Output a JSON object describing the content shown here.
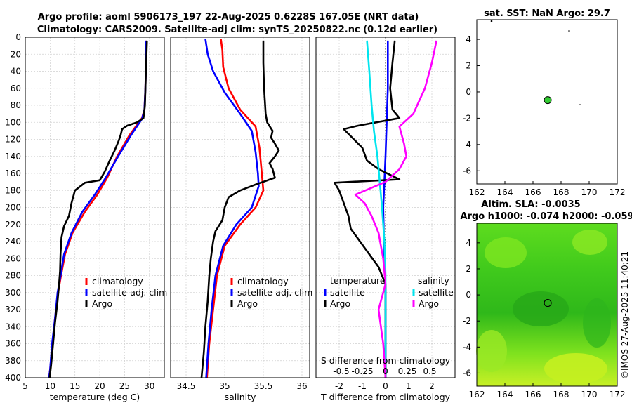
{
  "header": {
    "title_line1": "Argo profile: aoml 5906173_197 22-Aug-2025 0.6228S 167.05E (NRT data)",
    "title_line2": "Climatology: CARS2009. Satellite-adj clim: synTS_20250822.nc (0.12d earlier)"
  },
  "colors": {
    "climatology": "#ff0000",
    "satellite": "#0000ff",
    "argo": "#000000",
    "sal_satellite": "#00e5ee",
    "sal_argo": "#ff00ff",
    "map_dot": "#33cc33"
  },
  "chart_data": [
    {
      "type": "line",
      "id": "temperature",
      "xlabel": "temperature (deg C)",
      "ylim": [
        400,
        0
      ],
      "xlim": [
        5,
        33
      ],
      "xticks": [
        "5",
        "10",
        "15",
        "20",
        "25",
        "30"
      ],
      "yticks": [
        "0",
        "20",
        "40",
        "60",
        "80",
        "100",
        "120",
        "140",
        "160",
        "180",
        "200",
        "220",
        "240",
        "260",
        "280",
        "300",
        "320",
        "340",
        "360",
        "380",
        "400"
      ],
      "legend": [
        "climatology",
        "satellite-adj. clim",
        "Argo"
      ],
      "series": [
        {
          "name": "climatology",
          "points": [
            [
              29.3,
              4
            ],
            [
              29.3,
              30
            ],
            [
              29.2,
              60
            ],
            [
              29.0,
              85
            ],
            [
              28.5,
              95
            ],
            [
              26.0,
              115
            ],
            [
              23.5,
              140
            ],
            [
              21.5,
              165
            ],
            [
              19.5,
              185
            ],
            [
              17.0,
              205
            ],
            [
              14.5,
              230
            ],
            [
              13.0,
              255
            ],
            [
              12.2,
              280
            ],
            [
              11.6,
              300
            ],
            [
              11.0,
              330
            ],
            [
              10.5,
              360
            ],
            [
              10.0,
              390
            ],
            [
              9.8,
              400
            ]
          ]
        },
        {
          "name": "satellite-adj. clim",
          "points": [
            [
              29.3,
              4
            ],
            [
              29.3,
              30
            ],
            [
              29.2,
              60
            ],
            [
              29.0,
              85
            ],
            [
              28.5,
              96
            ],
            [
              26.3,
              115
            ],
            [
              23.7,
              140
            ],
            [
              21.2,
              165
            ],
            [
              19.0,
              185
            ],
            [
              16.5,
              205
            ],
            [
              14.3,
              230
            ],
            [
              12.8,
              255
            ],
            [
              12.1,
              280
            ],
            [
              11.5,
              300
            ],
            [
              11.0,
              330
            ],
            [
              10.4,
              360
            ],
            [
              10.0,
              390
            ],
            [
              9.8,
              400
            ]
          ]
        },
        {
          "name": "Argo",
          "points": [
            [
              29.5,
              4
            ],
            [
              29.3,
              40
            ],
            [
              29.1,
              80
            ],
            [
              28.8,
              95
            ],
            [
              27.5,
              100
            ],
            [
              25.5,
              104
            ],
            [
              24.5,
              108
            ],
            [
              24.2,
              115
            ],
            [
              23.8,
              122
            ],
            [
              23.0,
              133
            ],
            [
              22.0,
              145
            ],
            [
              21.0,
              158
            ],
            [
              20.0,
              168
            ],
            [
              17.0,
              171
            ],
            [
              15.0,
              180
            ],
            [
              14.3,
              195
            ],
            [
              13.8,
              210
            ],
            [
              12.8,
              222
            ],
            [
              12.3,
              235
            ],
            [
              12.1,
              255
            ],
            [
              12.0,
              275
            ],
            [
              11.8,
              290
            ],
            [
              11.5,
              310
            ],
            [
              11.0,
              335
            ],
            [
              10.6,
              360
            ],
            [
              10.2,
              385
            ],
            [
              9.9,
              400
            ]
          ]
        }
      ]
    },
    {
      "type": "line",
      "id": "salinity",
      "xlabel": "salinity",
      "ylim": [
        400,
        0
      ],
      "xlim": [
        34.3,
        36.1
      ],
      "xticks": [
        "34.5",
        "35",
        "35.5",
        "36"
      ],
      "legend": [
        "climatology",
        "satellite-adj. clim",
        "Argo"
      ],
      "series": [
        {
          "name": "climatology",
          "points": [
            [
              34.95,
              2
            ],
            [
              34.97,
              15
            ],
            [
              34.98,
              35
            ],
            [
              35.05,
              60
            ],
            [
              35.2,
              85
            ],
            [
              35.4,
              105
            ],
            [
              35.45,
              130
            ],
            [
              35.48,
              160
            ],
            [
              35.5,
              180
            ],
            [
              35.4,
              200
            ],
            [
              35.2,
              220
            ],
            [
              35.0,
              245
            ],
            [
              34.9,
              280
            ],
            [
              34.85,
              320
            ],
            [
              34.8,
              360
            ],
            [
              34.77,
              400
            ]
          ]
        },
        {
          "name": "satellite-adj. clim",
          "points": [
            [
              34.75,
              2
            ],
            [
              34.78,
              20
            ],
            [
              34.85,
              40
            ],
            [
              35.0,
              65
            ],
            [
              35.2,
              90
            ],
            [
              35.35,
              110
            ],
            [
              35.4,
              135
            ],
            [
              35.43,
              160
            ],
            [
              35.44,
              175
            ],
            [
              35.35,
              200
            ],
            [
              35.15,
              220
            ],
            [
              34.98,
              245
            ],
            [
              34.88,
              280
            ],
            [
              34.83,
              320
            ],
            [
              34.79,
              360
            ],
            [
              34.76,
              400
            ]
          ]
        },
        {
          "name": "Argo",
          "points": [
            [
              35.5,
              4
            ],
            [
              35.5,
              30
            ],
            [
              35.51,
              60
            ],
            [
              35.53,
              90
            ],
            [
              35.55,
              100
            ],
            [
              35.62,
              110
            ],
            [
              35.6,
              118
            ],
            [
              35.65,
              125
            ],
            [
              35.7,
              133
            ],
            [
              35.65,
              140
            ],
            [
              35.58,
              148
            ],
            [
              35.62,
              155
            ],
            [
              35.65,
              165
            ],
            [
              35.4,
              173
            ],
            [
              35.2,
              180
            ],
            [
              35.05,
              188
            ],
            [
              35.0,
              200
            ],
            [
              34.97,
              215
            ],
            [
              34.88,
              228
            ],
            [
              34.85,
              240
            ],
            [
              34.82,
              260
            ],
            [
              34.8,
              280
            ],
            [
              34.78,
              310
            ],
            [
              34.75,
              340
            ],
            [
              34.73,
              370
            ],
            [
              34.7,
              400
            ]
          ]
        }
      ]
    },
    {
      "type": "line",
      "id": "difference",
      "xlabel": "T difference from climatology",
      "xlabel_top": "S difference from climatology",
      "ylim": [
        400,
        0
      ],
      "xlim": [
        -3,
        3
      ],
      "xticks": [
        "-2",
        "-1",
        "0",
        "1",
        "2"
      ],
      "xticks_top": [
        "-0.5",
        "-0.25",
        "0",
        "0.25",
        "0.5"
      ],
      "legend_left_title": "temperature",
      "legend_right_title": "salinity",
      "legend_left": [
        "satellite",
        "Argo"
      ],
      "legend_right": [
        "satellite",
        "Argo"
      ],
      "series": [
        {
          "name": "temperature satellite",
          "points": [
            [
              0.1,
              4
            ],
            [
              0.1,
              60
            ],
            [
              0.05,
              100
            ],
            [
              0.0,
              140
            ],
            [
              -0.05,
              170
            ],
            [
              -0.1,
              200
            ],
            [
              -0.05,
              260
            ],
            [
              0.0,
              300
            ],
            [
              0.0,
              400
            ]
          ]
        },
        {
          "name": "temperature Argo",
          "points": [
            [
              0.4,
              4
            ],
            [
              0.3,
              30
            ],
            [
              0.2,
              60
            ],
            [
              0.3,
              85
            ],
            [
              0.6,
              95
            ],
            [
              -1.2,
              104
            ],
            [
              -1.8,
              108
            ],
            [
              -1.0,
              130
            ],
            [
              -0.8,
              145
            ],
            [
              -0.3,
              155
            ],
            [
              0.6,
              167
            ],
            [
              -2.2,
              171
            ],
            [
              -2.0,
              180
            ],
            [
              -1.8,
              195
            ],
            [
              -1.6,
              210
            ],
            [
              -1.5,
              225
            ],
            [
              -1.1,
              240
            ],
            [
              -0.7,
              255
            ],
            [
              -0.3,
              270
            ],
            [
              0.0,
              290
            ],
            [
              0.0,
              400
            ]
          ]
        },
        {
          "name": "salinity satellite",
          "points": [
            [
              -0.8,
              4
            ],
            [
              -0.7,
              40
            ],
            [
              -0.6,
              80
            ],
            [
              -0.5,
              110
            ],
            [
              -0.35,
              140
            ],
            [
              -0.25,
              170
            ],
            [
              -0.15,
              200
            ],
            [
              -0.05,
              240
            ],
            [
              0.0,
              280
            ],
            [
              0.0,
              400
            ]
          ]
        },
        {
          "name": "salinity Argo",
          "points": [
            [
              2.2,
              4
            ],
            [
              2.0,
              30
            ],
            [
              1.7,
              60
            ],
            [
              1.2,
              90
            ],
            [
              0.6,
              105
            ],
            [
              0.8,
              125
            ],
            [
              0.9,
              140
            ],
            [
              0.6,
              155
            ],
            [
              0.0,
              170
            ],
            [
              -1.3,
              185
            ],
            [
              -0.9,
              195
            ],
            [
              -0.6,
              210
            ],
            [
              -0.3,
              230
            ],
            [
              -0.1,
              260
            ],
            [
              0.0,
              290
            ],
            [
              -0.3,
              320
            ],
            [
              -0.1,
              360
            ],
            [
              0.0,
              400
            ]
          ]
        }
      ]
    },
    {
      "type": "scatter",
      "id": "sst-map",
      "title": "sat. SST: NaN Argo: 29.7",
      "xlim": [
        162,
        172
      ],
      "ylim": [
        -7,
        5.5
      ],
      "xticks": [
        "162",
        "164",
        "166",
        "168",
        "170",
        "172"
      ],
      "yticks": [
        "4",
        "2",
        "0",
        "-2",
        "-4",
        "-6"
      ],
      "argo_position": [
        167.05,
        -0.62
      ]
    },
    {
      "type": "heatmap",
      "id": "sla-map",
      "title_line1": "Altim. SLA: -0.0035",
      "title_line2": "Argo h1000: -0.074 h2000: -0.059",
      "xlim": [
        162,
        172
      ],
      "ylim": [
        -7,
        5.5
      ],
      "xticks": [
        "162",
        "164",
        "166",
        "168",
        "170",
        "172"
      ],
      "yticks": [
        "4",
        "2",
        "0",
        "-2",
        "-4",
        "-6"
      ],
      "argo_position": [
        167.05,
        -0.62
      ]
    }
  ],
  "watermark": "©IMOS 27-Aug-2025 11:40:21"
}
